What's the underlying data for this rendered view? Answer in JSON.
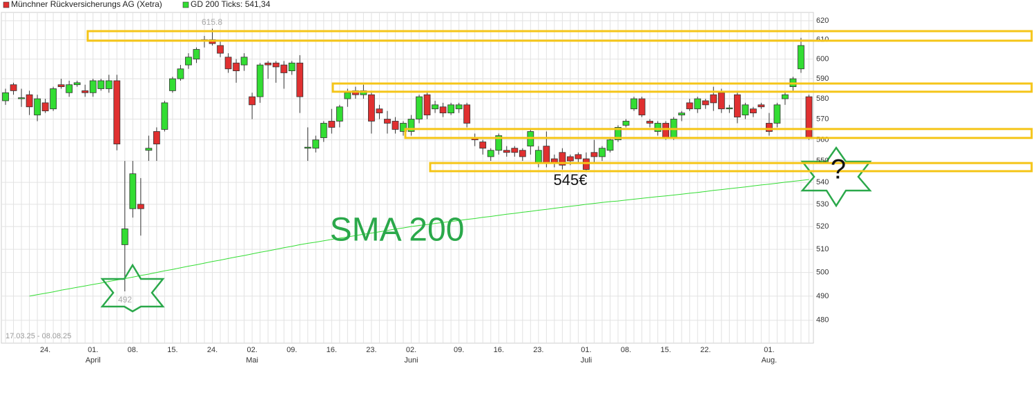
{
  "chart_data": {
    "type": "candlestick",
    "date_range": "17.03.25 - 08.08.25",
    "categories": [
      null,
      null,
      null,
      null,
      null,
      "24.",
      null,
      null,
      null,
      null,
      null,
      "01.",
      null,
      null,
      null,
      null,
      "08.",
      null,
      null,
      null,
      null,
      "15.",
      null,
      null,
      null,
      null,
      "24.",
      null,
      null,
      null,
      null,
      "02.",
      null,
      null,
      null,
      null,
      "09.",
      null,
      null,
      null,
      null,
      "16.",
      null,
      null,
      null,
      null,
      "23.",
      null,
      null,
      null,
      null,
      "02.",
      null,
      null,
      null,
      null,
      null,
      "09.",
      null,
      null,
      null,
      null,
      "16.",
      null,
      null,
      null,
      null,
      "23.",
      null,
      null,
      null,
      null,
      null,
      "01.",
      null,
      null,
      null,
      null,
      "08.",
      null,
      null,
      null,
      null,
      "15.",
      null,
      null,
      null,
      null,
      "22.",
      null,
      null,
      null,
      null,
      null,
      null,
      null,
      "01.",
      null,
      null,
      null,
      null,
      null
    ],
    "months": [
      null,
      null,
      null,
      null,
      null,
      null,
      null,
      null,
      null,
      null,
      null,
      "April",
      null,
      null,
      null,
      null,
      null,
      null,
      null,
      null,
      null,
      null,
      null,
      null,
      null,
      null,
      null,
      null,
      null,
      null,
      null,
      "Mai",
      null,
      null,
      null,
      null,
      null,
      null,
      null,
      null,
      null,
      null,
      null,
      null,
      null,
      null,
      null,
      null,
      null,
      null,
      null,
      "Juni",
      null,
      null,
      null,
      null,
      null,
      null,
      null,
      null,
      null,
      null,
      null,
      null,
      null,
      null,
      null,
      null,
      null,
      null,
      null,
      null,
      null,
      "Juli",
      null,
      null,
      null,
      null,
      null,
      null,
      null,
      null,
      null,
      null,
      null,
      null,
      null,
      null,
      null,
      null,
      null,
      null,
      null,
      null,
      null,
      null,
      "Aug.",
      null,
      null,
      null,
      null,
      null
    ],
    "series": [
      {
        "name": "Münchner Rückversicherungs AG (Xetra)",
        "up_color": "#33dd33",
        "down_color": "#e03030",
        "open": [
          579,
          587,
          580,
          582,
          572,
          578,
          575,
          587,
          583,
          587,
          584,
          583,
          585,
          585,
          589,
          512,
          528,
          530,
          555,
          564,
          565,
          584,
          590,
          597,
          600,
          609.5,
          610,
          607,
          601,
          598,
          597,
          581,
          581,
          598,
          598,
          597,
          594,
          598,
          556,
          556,
          561,
          569,
          569,
          580,
          584,
          582,
          582,
          575,
          570,
          569,
          564,
          564,
          570,
          582,
          575,
          576,
          573,
          575,
          577,
          561,
          559,
          552,
          555,
          555,
          556,
          555,
          557,
          549,
          557,
          551,
          554,
          552,
          553,
          551,
          554,
          552,
          555,
          560,
          567,
          575,
          580,
          569,
          564,
          568,
          561,
          572,
          578,
          575,
          579,
          582,
          583,
          575,
          582,
          572,
          575,
          577,
          568,
          568,
          580,
          586,
          595,
          581
        ],
        "high": [
          585,
          588,
          585,
          584,
          582,
          580,
          586,
          590,
          589,
          589,
          587,
          590,
          590,
          592,
          592,
          550,
          550,
          542,
          562,
          566,
          579,
          591,
          597,
          603,
          606,
          612,
          615.8,
          609,
          603,
          600,
          603,
          583,
          598,
          599,
          599,
          599,
          599,
          602,
          566,
          562,
          569,
          575,
          577,
          585,
          586,
          587,
          584,
          577,
          574,
          571,
          569,
          572,
          582,
          583,
          579,
          578,
          578,
          578,
          578,
          563,
          560,
          556,
          563,
          557,
          557,
          556,
          565,
          557,
          564,
          553,
          556,
          553,
          554,
          554,
          560,
          557,
          561,
          567,
          570,
          581,
          581,
          570,
          569,
          569,
          571,
          574,
          580,
          581,
          580,
          586,
          585,
          577,
          583,
          578,
          576,
          578,
          573,
          578,
          584,
          591,
          611,
          582
        ],
        "low": [
          577,
          582,
          576,
          572,
          569,
          573,
          574,
          585,
          581,
          586,
          581,
          581,
          584,
          583,
          555,
          492,
          524,
          516,
          550,
          550,
          564,
          583,
          589,
          595,
          598,
          606,
          607,
          601,
          593,
          588,
          594,
          570,
          578,
          590,
          588,
          585,
          592,
          573,
          550,
          554,
          559,
          563,
          566,
          576,
          580,
          580,
          563,
          570,
          563,
          563,
          562,
          562,
          568,
          570,
          573,
          571,
          572,
          573,
          566,
          557,
          553,
          550,
          553,
          552,
          552,
          550,
          553,
          547,
          547,
          547,
          546,
          548,
          549,
          545,
          549,
          550,
          554,
          559,
          566,
          574,
          571,
          566,
          562,
          560,
          560,
          569,
          574,
          573,
          575,
          574,
          573,
          573,
          568,
          570,
          571,
          575,
          562,
          566,
          577,
          584,
          593,
          560
        ],
        "close": [
          583,
          584,
          580.5,
          576,
          580,
          574,
          585,
          586,
          587,
          588,
          583,
          589,
          589,
          589,
          558,
          519,
          544,
          528,
          556,
          558,
          578,
          590,
          595,
          601,
          605,
          610,
          608,
          603,
          595,
          594,
          601,
          577,
          597,
          597,
          596,
          593,
          598,
          581,
          556.5,
          560,
          568,
          566,
          576,
          583,
          582,
          584,
          569,
          573,
          568,
          565,
          568,
          570,
          581,
          572,
          577,
          573,
          577,
          577,
          568,
          560,
          556,
          555,
          562,
          554,
          554,
          552,
          564,
          555,
          549,
          549,
          548,
          550,
          551,
          546,
          552,
          556,
          560,
          566,
          569,
          580,
          572,
          568,
          568,
          561,
          570,
          573,
          575,
          580,
          577,
          578,
          575,
          575.5,
          571,
          577,
          573,
          576,
          564,
          577,
          582,
          590,
          607,
          561
        ]
      },
      {
        "name": "GD 200 Ticks: 541,34",
        "color": "#33dd33",
        "values": [
          null,
          null,
          null,
          490.0,
          490.6,
          491.2,
          491.8,
          492.5,
          493.1,
          493.7,
          494.3,
          494.9,
          495.5,
          496.2,
          496.8,
          497.4,
          498.0,
          498.7,
          499.3,
          500.0,
          500.7,
          501.3,
          502.0,
          502.7,
          503.3,
          504.0,
          504.7,
          505.3,
          506.0,
          506.7,
          507.3,
          508.0,
          508.7,
          509.3,
          510.0,
          510.7,
          511.3,
          512.0,
          512.6,
          513.1,
          513.7,
          514.3,
          514.9,
          515.4,
          516.0,
          516.6,
          517.1,
          517.7,
          518.3,
          518.9,
          519.4,
          520.0,
          520.5,
          520.9,
          521.4,
          521.8,
          522.3,
          522.7,
          523.2,
          523.6,
          524.1,
          524.5,
          525.0,
          525.5,
          525.9,
          526.4,
          526.8,
          527.3,
          527.7,
          528.2,
          528.6,
          529.1,
          529.5,
          530.0,
          530.4,
          530.8,
          531.2,
          531.5,
          531.9,
          532.3,
          532.7,
          533.1,
          533.5,
          533.8,
          534.2,
          534.6,
          535.0,
          535.4,
          535.8,
          536.3,
          536.7,
          537.1,
          537.5,
          537.9,
          538.4,
          538.8,
          539.2,
          539.6,
          540.1,
          540.5,
          540.9,
          541.34
        ]
      }
    ],
    "log_scale": true,
    "ylim": [
      470.7,
      624.4
    ],
    "yticks": [
      480,
      490,
      500,
      510,
      520,
      530,
      540,
      550,
      560,
      570,
      580,
      590,
      600,
      610,
      620
    ],
    "grid": true,
    "zone_color": "#f5c518",
    "zones": [
      [
        609.5,
        614.5
      ],
      [
        583.5,
        587.6
      ],
      [
        560.9,
        565.2
      ],
      [
        545.2,
        549.0
      ]
    ],
    "annotations": [
      "615.8",
      "492",
      "545€",
      "SMA 200",
      "?"
    ]
  }
}
